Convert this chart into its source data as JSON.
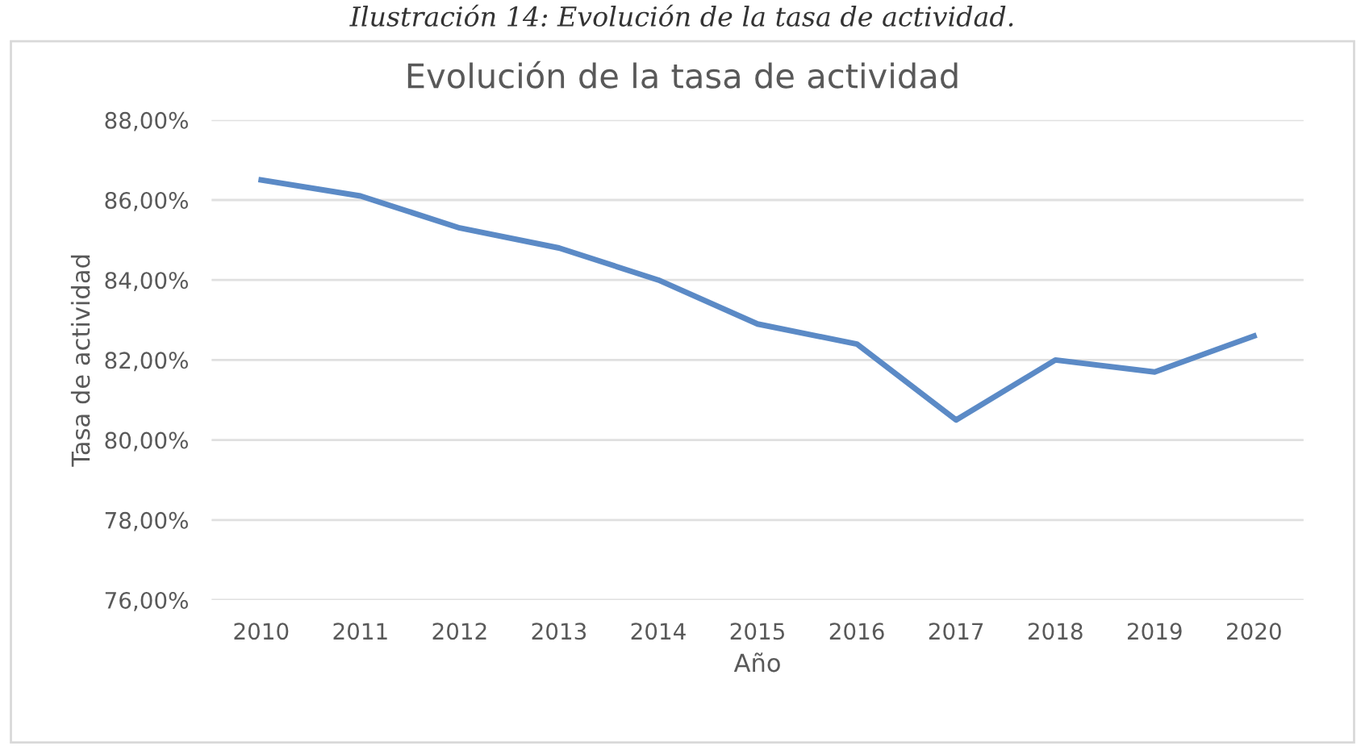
{
  "chart_data": {
    "type": "line",
    "title": "Evolución de la tasa de actividad",
    "xlabel": "Año",
    "ylabel": "Tasa de actividad",
    "annotations": [
      "Ilustración 14: Evolución de la tasa de actividad."
    ],
    "categories": [
      "2010",
      "2011",
      "2012",
      "2013",
      "2014",
      "2015",
      "2016",
      "2017",
      "2018",
      "2019",
      "2020"
    ],
    "series": [
      {
        "color": "#5b8ac6",
        "values": [
          86.5,
          86.1,
          85.3,
          84.8,
          84.0,
          82.9,
          82.4,
          80.5,
          82.0,
          81.7,
          82.6
        ]
      }
    ],
    "ylim": [
      76,
      88
    ],
    "yticks": [
      {
        "value": 76,
        "label": "76,00%"
      },
      {
        "value": 78,
        "label": "78,00%"
      },
      {
        "value": 80,
        "label": "80,00%"
      },
      {
        "value": 82,
        "label": "82,00%"
      },
      {
        "value": 84,
        "label": "84,00%"
      },
      {
        "value": 86,
        "label": "86,00%"
      },
      {
        "value": 88,
        "label": "88,00%"
      }
    ],
    "grid": "y",
    "legend": false,
    "marker": "none",
    "line_style": "solid"
  }
}
